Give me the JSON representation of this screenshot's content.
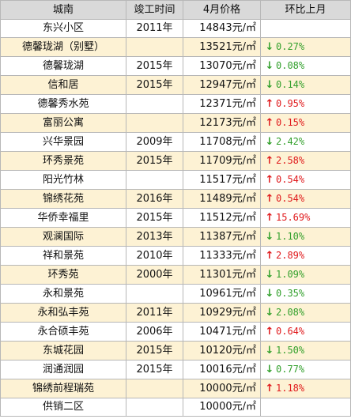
{
  "header": {
    "col_name": "城南",
    "col_year": "竣工时间",
    "col_price": "4月价格",
    "col_change": "环比上月"
  },
  "colors": {
    "up": "#e0191b",
    "down": "#33a02c",
    "header_bg": "#d9d9d9",
    "alt_row_bg": "#fdf2d4"
  },
  "rows": [
    {
      "name": "东兴小区",
      "year": "2011年",
      "price": "14843元/㎡",
      "dir": "",
      "change": ""
    },
    {
      "name": "德馨珑湖（别墅）",
      "year": "",
      "price": "13521元/㎡",
      "dir": "down",
      "change": "0.27%"
    },
    {
      "name": "德馨珑湖",
      "year": "2015年",
      "price": "13070元/㎡",
      "dir": "down",
      "change": "0.08%"
    },
    {
      "name": "信和居",
      "year": "2015年",
      "price": "12947元/㎡",
      "dir": "down",
      "change": "0.14%"
    },
    {
      "name": "德馨秀水苑",
      "year": "",
      "price": "12371元/㎡",
      "dir": "up",
      "change": "0.95%"
    },
    {
      "name": "富丽公寓",
      "year": "",
      "price": "12173元/㎡",
      "dir": "up",
      "change": "0.15%"
    },
    {
      "name": "兴华景园",
      "year": "2009年",
      "price": "11708元/㎡",
      "dir": "down",
      "change": "2.42%"
    },
    {
      "name": "环秀景苑",
      "year": "2015年",
      "price": "11709元/㎡",
      "dir": "up",
      "change": "2.58%"
    },
    {
      "name": "阳光竹林",
      "year": "",
      "price": "11517元/㎡",
      "dir": "up",
      "change": "0.54%"
    },
    {
      "name": "锦绣花苑",
      "year": "2016年",
      "price": "11489元/㎡",
      "dir": "up",
      "change": "0.54%"
    },
    {
      "name": "华侨幸福里",
      "year": "2015年",
      "price": "11512元/㎡",
      "dir": "up",
      "change": "15.69%"
    },
    {
      "name": "观澜国际",
      "year": "2013年",
      "price": "11387元/㎡",
      "dir": "down",
      "change": "1.10%"
    },
    {
      "name": "祥和景苑",
      "year": "2010年",
      "price": "11333元/㎡",
      "dir": "up",
      "change": "2.89%"
    },
    {
      "name": "环秀苑",
      "year": "2000年",
      "price": "11301元/㎡",
      "dir": "down",
      "change": "1.09%"
    },
    {
      "name": "永和景苑",
      "year": "",
      "price": "10961元/㎡",
      "dir": "down",
      "change": "0.35%"
    },
    {
      "name": "永和弘丰苑",
      "year": "2011年",
      "price": "10929元/㎡",
      "dir": "down",
      "change": "2.08%"
    },
    {
      "name": "永合硕丰苑",
      "year": "2006年",
      "price": "10471元/㎡",
      "dir": "up",
      "change": "0.64%"
    },
    {
      "name": "东城花园",
      "year": "2015年",
      "price": "10120元/㎡",
      "dir": "down",
      "change": "1.50%"
    },
    {
      "name": "润通润园",
      "year": "2015年",
      "price": "10016元/㎡",
      "dir": "down",
      "change": "0.77%"
    },
    {
      "name": "锦绣前程瑞苑",
      "year": "",
      "price": "10000元/㎡",
      "dir": "up",
      "change": "1.18%"
    },
    {
      "name": "供销二区",
      "year": "",
      "price": "10000元/㎡",
      "dir": "",
      "change": ""
    }
  ]
}
